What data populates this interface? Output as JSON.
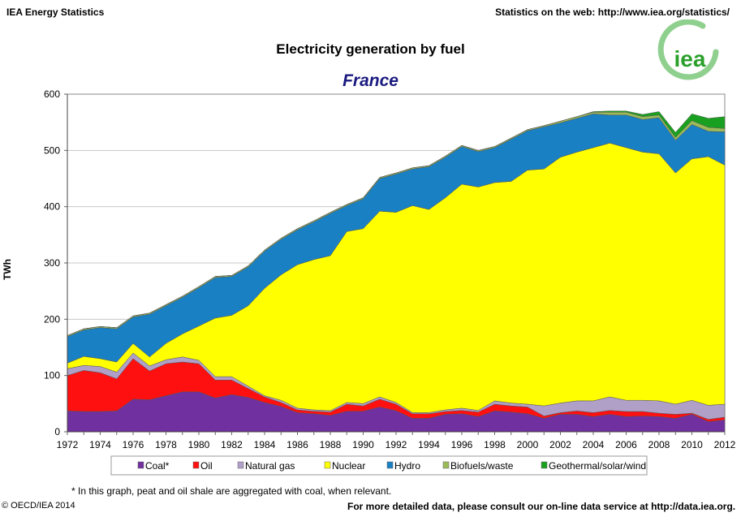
{
  "header": {
    "left": "IEA Energy Statistics",
    "right": "Statistics on the web: http://www.iea.org/statistics/",
    "logo_text": "iea"
  },
  "footer": {
    "note": "* In this graph, peat and oil shale are aggregated with coal, when relevant.",
    "copyright": "© OECD/IEA 2014",
    "more": "For more detailed data, please consult our on-line data service at http://data.iea.org."
  },
  "chart_data": {
    "type": "area",
    "stacked": true,
    "title": "Electricity generation by fuel",
    "subtitle": "France",
    "xlabel": "",
    "ylabel": "TWh",
    "xlim": [
      1972,
      2012
    ],
    "ylim": [
      0,
      600
    ],
    "yticks": [
      "0",
      "100",
      "200",
      "300",
      "400",
      "500",
      "600"
    ],
    "xticks": [
      "1972",
      "1974",
      "1976",
      "1978",
      "1980",
      "1982",
      "1984",
      "1986",
      "1988",
      "1990",
      "1992",
      "1994",
      "1996",
      "1998",
      "2000",
      "2002",
      "2004",
      "2006",
      "2008",
      "2010",
      "2012"
    ],
    "grid": true,
    "legend_position": "bottom",
    "x": [
      1972,
      1973,
      1974,
      1975,
      1976,
      1977,
      1978,
      1979,
      1980,
      1981,
      1982,
      1983,
      1984,
      1985,
      1986,
      1987,
      1988,
      1989,
      1990,
      1991,
      1992,
      1993,
      1994,
      1995,
      1996,
      1997,
      1998,
      1999,
      2000,
      2001,
      2002,
      2003,
      2004,
      2005,
      2006,
      2007,
      2008,
      2009,
      2010,
      2011,
      2012
    ],
    "series": [
      {
        "name": "Coal*",
        "color": "#7030a0",
        "values": [
          37,
          36,
          36,
          37,
          58,
          57,
          64,
          71,
          71,
          60,
          66,
          61,
          52,
          45,
          34,
          32,
          29,
          36.5,
          36.5,
          44,
          37.5,
          24,
          24,
          31,
          32,
          27,
          37,
          35,
          32,
          24,
          31,
          31,
          27,
          31,
          27,
          28,
          27,
          24,
          31,
          18,
          21
        ]
      },
      {
        "name": "Oil",
        "color": "#ff1010",
        "values": [
          63,
          73,
          69,
          57,
          72,
          51,
          57,
          53,
          50,
          32,
          26,
          16,
          10,
          7,
          5,
          4.5,
          6,
          12.5,
          9.5,
          14,
          11.5,
          8,
          8,
          5,
          6,
          8,
          12,
          11,
          12,
          4,
          3,
          6,
          7,
          7,
          9,
          8,
          6,
          7,
          2,
          4,
          5
        ]
      },
      {
        "name": "Natural gas",
        "color": "#b0a0c8",
        "values": [
          12,
          9,
          11,
          12,
          10,
          9,
          7,
          9,
          6,
          6,
          6,
          4,
          2,
          4,
          3,
          2.5,
          2.5,
          3,
          4,
          4,
          3,
          2,
          2,
          3,
          4,
          3,
          6,
          5,
          5,
          18,
          17,
          18,
          21,
          24,
          20,
          20,
          22,
          18,
          23,
          25,
          23
        ]
      },
      {
        "name": "Nuclear",
        "color": "#ffff00",
        "values": [
          10,
          16,
          14,
          18,
          17,
          16,
          29,
          41,
          61,
          104,
          109,
          143,
          191,
          223,
          255,
          267,
          275.5,
          304,
          311,
          330,
          338,
          368,
          361,
          377,
          398,
          397,
          388,
          394,
          416,
          421,
          437,
          442,
          450,
          451,
          449,
          441,
          439,
          411,
          429,
          442,
          425
        ]
      },
      {
        "name": "Hydro",
        "color": "#1a80c4",
        "values": [
          47,
          47,
          55,
          59,
          47,
          76,
          67,
          65,
          68,
          72,
          69,
          69,
          66,
          63,
          62,
          67,
          75,
          46,
          53,
          58,
          68,
          65,
          76,
          72,
          67,
          63,
          62,
          75,
          70,
          75,
          61,
          60,
          60,
          50,
          58,
          58,
          64,
          58,
          61,
          45,
          59
        ]
      },
      {
        "name": "Biofuels/waste",
        "color": "#9bbb59",
        "values": [
          2,
          2,
          2,
          2,
          2,
          2,
          2,
          2,
          2,
          2,
          2,
          2,
          2,
          2,
          2,
          2,
          2,
          2,
          2,
          2,
          2,
          2,
          2,
          2,
          2,
          2,
          2,
          2,
          2,
          2,
          3,
          3,
          3,
          5,
          5,
          5,
          5,
          5,
          7,
          7,
          6
        ]
      },
      {
        "name": "Geothermal/solar/wind",
        "color": "#1aa020",
        "values": [
          0,
          0,
          0,
          0,
          0,
          0,
          0,
          0,
          0,
          0,
          0,
          0,
          0,
          0,
          0,
          0,
          0,
          0,
          0,
          0,
          0,
          0,
          0,
          0,
          0,
          0,
          0,
          0,
          0,
          0,
          0,
          0,
          1,
          2,
          2,
          4,
          6,
          9,
          12,
          16,
          21
        ]
      }
    ]
  }
}
